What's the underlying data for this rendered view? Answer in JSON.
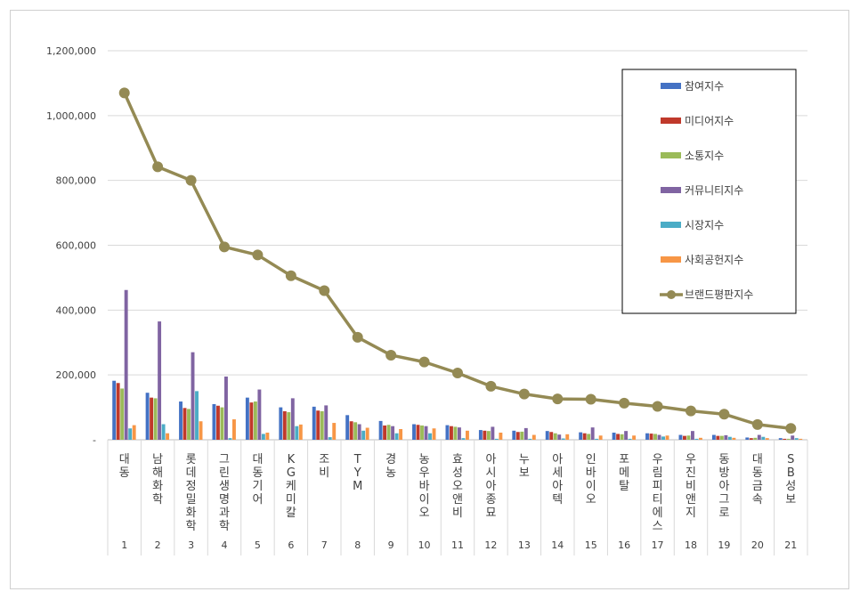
{
  "chart_data": {
    "type": "bar",
    "title": "",
    "xlabel": "",
    "ylabel": "",
    "ylim": [
      0,
      1200000
    ],
    "yticks": [
      "-",
      "200,000",
      "400,000",
      "600,000",
      "800,000",
      "1,000,000",
      "1,200,000"
    ],
    "grid": true,
    "legend_position": "top-right",
    "indices": [
      "1",
      "2",
      "3",
      "4",
      "5",
      "6",
      "7",
      "8",
      "9",
      "10",
      "11",
      "12",
      "13",
      "14",
      "15",
      "16",
      "17",
      "18",
      "19",
      "20",
      "21"
    ],
    "categories": [
      "대동",
      "남해화학",
      "롯데정밀화학",
      "그린생명과학",
      "대동기어",
      "KG케미칼",
      "조비",
      "TYM",
      "경농",
      "농우바이오",
      "효성오앤비",
      "아시아종묘",
      "누보",
      "아세아텍",
      "인바이오",
      "포메탈",
      "우림피티에스",
      "우진비앤지",
      "동방아그로",
      "대동금속",
      "SB성보"
    ],
    "series": [
      {
        "name": "참여지수",
        "type": "bar",
        "color": "#4472c4",
        "values": [
          182000,
          145000,
          118000,
          110000,
          130000,
          100000,
          102000,
          76000,
          58000,
          48000,
          45000,
          30000,
          28000,
          27000,
          23000,
          22000,
          20000,
          15000,
          15000,
          7000,
          5000
        ]
      },
      {
        "name": "미디어지수",
        "type": "bar",
        "color": "#c0392b",
        "values": [
          175000,
          130000,
          98000,
          105000,
          115000,
          88000,
          90000,
          57000,
          44000,
          46000,
          42000,
          28000,
          24000,
          24000,
          20000,
          18000,
          19000,
          12000,
          12000,
          5000,
          3000
        ]
      },
      {
        "name": "소통지수",
        "type": "bar",
        "color": "#9bbb59",
        "values": [
          158000,
          128000,
          95000,
          100000,
          118000,
          85000,
          88000,
          54000,
          46000,
          44000,
          40000,
          27000,
          25000,
          20000,
          18000,
          17000,
          18000,
          13000,
          12000,
          6000,
          3000
        ]
      },
      {
        "name": "커뮤니티지수",
        "type": "bar",
        "color": "#8064a2",
        "values": [
          462000,
          365000,
          270000,
          195000,
          155000,
          128000,
          106000,
          48000,
          42000,
          42000,
          38000,
          40000,
          36000,
          16000,
          38000,
          27000,
          15000,
          27000,
          14000,
          15000,
          13000
        ]
      },
      {
        "name": "시장지수",
        "type": "bar",
        "color": "#4bacc6",
        "values": [
          35000,
          48000,
          150000,
          5000,
          18000,
          42000,
          8000,
          28000,
          20000,
          20000,
          5000,
          3000,
          3000,
          4000,
          3000,
          3000,
          10000,
          3000,
          9000,
          9000,
          5000
        ]
      },
      {
        "name": "사회공헌지수",
        "type": "bar",
        "color": "#f79646",
        "values": [
          45000,
          20000,
          57000,
          63000,
          22000,
          47000,
          52000,
          37000,
          33000,
          35000,
          28000,
          22000,
          15000,
          17000,
          13000,
          13000,
          13000,
          6000,
          6000,
          5000,
          3000
        ]
      },
      {
        "name": "브랜드평판지수",
        "type": "line",
        "color": "#948a54",
        "values": [
          1070000,
          842000,
          800000,
          595000,
          570000,
          506000,
          460000,
          316000,
          261000,
          240000,
          206000,
          165000,
          141000,
          126000,
          125000,
          113000,
          103000,
          89000,
          79000,
          47000,
          35000
        ]
      }
    ]
  }
}
